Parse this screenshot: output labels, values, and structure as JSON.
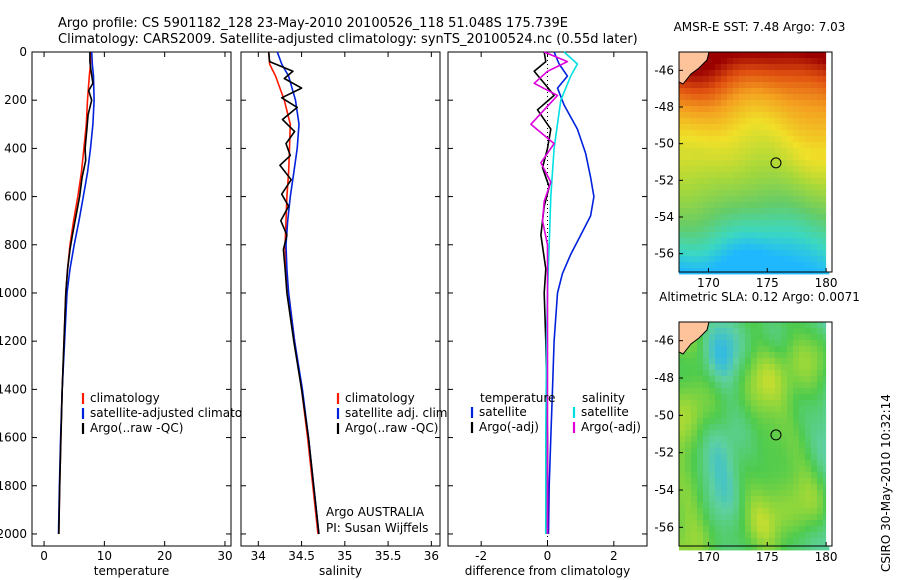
{
  "header": {
    "line1": "Argo profile: CS 5901182_128 23-May-2010 20100526_118 51.048S 175.739E",
    "line2": "Climatology: CARS2009. Satellite-adjusted climatology: synTS_20100524.nc (0.55d later)"
  },
  "side_label": "CSIRO 30-May-2010 10:32:14",
  "colors": {
    "climatology": "#ff1a00",
    "satellite": "#0022dd",
    "argo": "#000000",
    "satellite_sal": "#00e0e0",
    "argo_sal": "#dd00dd",
    "land": "#ffc39b"
  },
  "chart_data": [
    {
      "type": "line",
      "xlabel": "temperature",
      "ylabel": "",
      "xlim": [
        -2,
        31
      ],
      "ylim": [
        2050,
        0
      ],
      "xticks": [
        0,
        10,
        20,
        30
      ],
      "yticks": [
        0,
        200,
        400,
        600,
        800,
        1000,
        1200,
        1400,
        1600,
        1800,
        2000
      ],
      "legend": [
        "climatology",
        "satellite-adjusted climatology",
        "Argo(..raw -QC)"
      ],
      "series": [
        {
          "name": "climatology",
          "color": "#ff1a00",
          "x": [
            7.7,
            7.7,
            7.5,
            7.2,
            7.0,
            6.6,
            6.2,
            5.6,
            4.9,
            4.3,
            3.9,
            3.6,
            3.3,
            3.0,
            2.8,
            2.6,
            2.45
          ],
          "y": [
            0,
            50,
            100,
            200,
            300,
            400,
            500,
            600,
            700,
            800,
            900,
            1000,
            1200,
            1400,
            1600,
            1800,
            2000
          ]
        },
        {
          "name": "satellite-adjusted climatology",
          "color": "#0022dd",
          "x": [
            7.9,
            8.0,
            8.2,
            8.3,
            8.1,
            7.7,
            7.2,
            6.5,
            5.8,
            5.0,
            4.3,
            3.8,
            3.4,
            3.0,
            2.75,
            2.55,
            2.4
          ],
          "y": [
            0,
            50,
            100,
            200,
            300,
            400,
            500,
            600,
            700,
            800,
            900,
            1000,
            1200,
            1400,
            1600,
            1800,
            2000
          ]
        },
        {
          "name": "Argo(..raw -QC)",
          "color": "#000000",
          "x": [
            7.6,
            7.6,
            7.8,
            8.1,
            7.4,
            7.9,
            7.3,
            7.1,
            6.8,
            6.9,
            6.3,
            5.9,
            5.3,
            4.7,
            4.3,
            3.9,
            3.6,
            3.3,
            3.0,
            2.8,
            2.6,
            2.45
          ],
          "y": [
            0,
            40,
            80,
            130,
            160,
            200,
            260,
            320,
            400,
            450,
            520,
            600,
            680,
            760,
            820,
            900,
            1000,
            1200,
            1400,
            1600,
            1800,
            2000
          ]
        }
      ]
    },
    {
      "type": "line",
      "xlabel": "salinity",
      "ylabel": "",
      "xlim": [
        33.8,
        36.1
      ],
      "ylim": [
        2050,
        0
      ],
      "xticks": [
        34,
        34.5,
        35,
        35.5,
        36
      ],
      "legend": [
        "climatology",
        "satellite adj. clim.",
        "Argo(..raw -QC)"
      ],
      "annotation": [
        "Argo AUSTRALIA",
        "PI: Susan Wijffels"
      ],
      "series": [
        {
          "name": "climatology",
          "color": "#ff1a00",
          "x": [
            34.12,
            34.13,
            34.2,
            34.3,
            34.37,
            34.36,
            34.35,
            34.33,
            34.32,
            34.31,
            34.32,
            34.35,
            34.42,
            34.5,
            34.57,
            34.63,
            34.69
          ],
          "y": [
            0,
            50,
            100,
            200,
            300,
            400,
            500,
            600,
            700,
            800,
            900,
            1000,
            1200,
            1400,
            1600,
            1800,
            2000
          ]
        },
        {
          "name": "satellite adj. clim.",
          "color": "#0022dd",
          "x": [
            34.22,
            34.27,
            34.35,
            34.43,
            34.47,
            34.45,
            34.41,
            34.37,
            34.34,
            34.32,
            34.33,
            34.35,
            34.42,
            34.51,
            34.58,
            34.64,
            34.7
          ],
          "y": [
            0,
            50,
            100,
            200,
            300,
            400,
            500,
            600,
            700,
            800,
            900,
            1000,
            1200,
            1400,
            1600,
            1800,
            2000
          ]
        },
        {
          "name": "Argo(..raw -QC)",
          "color": "#000000",
          "x": [
            34.12,
            34.13,
            34.4,
            34.3,
            34.5,
            34.27,
            34.45,
            34.28,
            34.42,
            34.32,
            34.37,
            34.25,
            34.38,
            34.27,
            34.35,
            34.26,
            34.33,
            34.29,
            34.31,
            34.33,
            34.41,
            34.5,
            34.58,
            34.64,
            34.7
          ],
          "y": [
            0,
            40,
            80,
            110,
            150,
            190,
            230,
            280,
            330,
            380,
            430,
            470,
            530,
            590,
            640,
            700,
            760,
            820,
            900,
            1000,
            1200,
            1400,
            1600,
            1800,
            2000
          ]
        }
      ]
    },
    {
      "type": "line",
      "xlabel": "difference from climatology",
      "ylabel": "",
      "xlim": [
        -3,
        3
      ],
      "ylim": [
        2050,
        0
      ],
      "xticks": [
        -2,
        0,
        2
      ],
      "legend_temperature": [
        "temperature",
        "satellite",
        "Argo(-adj)"
      ],
      "legend_salinity": [
        "salinity",
        "satellite",
        "Argo(-adj)"
      ],
      "series": [
        {
          "name": "temperature satellite",
          "color": "#0022dd",
          "x": [
            0.2,
            0.35,
            0.6,
            0.3,
            0.5,
            0.9,
            1.15,
            1.3,
            1.4,
            1.3,
            1.0,
            0.7,
            0.45,
            0.3,
            0.2,
            0.15,
            0.1,
            0.05,
            0.03
          ],
          "y": [
            0,
            50,
            100,
            150,
            220,
            320,
            420,
            520,
            600,
            680,
            760,
            840,
            920,
            1000,
            1200,
            1400,
            1600,
            1800,
            2000
          ]
        },
        {
          "name": "temperature Argo(-adj)",
          "color": "#000000",
          "x": [
            -0.1,
            -0.05,
            -0.4,
            -0.1,
            0.2,
            -0.3,
            0.1,
            0.0,
            -0.15,
            0.05,
            -0.1,
            -0.2,
            -0.05,
            -0.1,
            -0.05,
            0.0,
            0.0
          ],
          "y": [
            0,
            40,
            80,
            130,
            180,
            240,
            320,
            400,
            480,
            560,
            640,
            760,
            900,
            1000,
            1200,
            1600,
            2000
          ]
        },
        {
          "name": "salinity satellite",
          "color": "#00e0e0",
          "x": [
            0.5,
            0.9,
            0.7,
            0.4,
            0.2,
            0.1,
            0.05,
            0.0,
            -0.03,
            -0.05,
            -0.05
          ],
          "y": [
            0,
            50,
            100,
            200,
            400,
            600,
            800,
            1000,
            1200,
            1600,
            2000
          ]
        },
        {
          "name": "salinity Argo(-adj)",
          "color": "#dd00dd",
          "x": [
            -0.1,
            0.6,
            0.0,
            -0.4,
            0.3,
            -0.1,
            -0.5,
            0.2,
            -0.2,
            0.1,
            -0.1,
            -0.15,
            0.0,
            0.0,
            0.0
          ],
          "y": [
            0,
            40,
            80,
            130,
            180,
            240,
            300,
            380,
            460,
            540,
            620,
            700,
            800,
            1000,
            2000
          ]
        }
      ]
    },
    {
      "type": "heatmap",
      "title": "AMSR-E SST: 7.48 Argo: 7.03",
      "xlim": [
        167.5,
        180.5
      ],
      "ylim": [
        -57,
        -45
      ],
      "xticks": [
        170,
        175,
        180
      ],
      "yticks": [
        -46,
        -48,
        -50,
        -52,
        -54,
        -56
      ],
      "marker": {
        "lon": 175.739,
        "lat": -51.048
      }
    },
    {
      "type": "heatmap",
      "title": "Altimetric SLA: 0.12 Argo: 0.0071",
      "xlim": [
        167.5,
        180.5
      ],
      "ylim": [
        -57,
        -45
      ],
      "xticks": [
        170,
        175,
        180
      ],
      "yticks": [
        -46,
        -48,
        -50,
        -52,
        -54,
        -56
      ],
      "marker": {
        "lon": 175.739,
        "lat": -51.048
      }
    }
  ]
}
